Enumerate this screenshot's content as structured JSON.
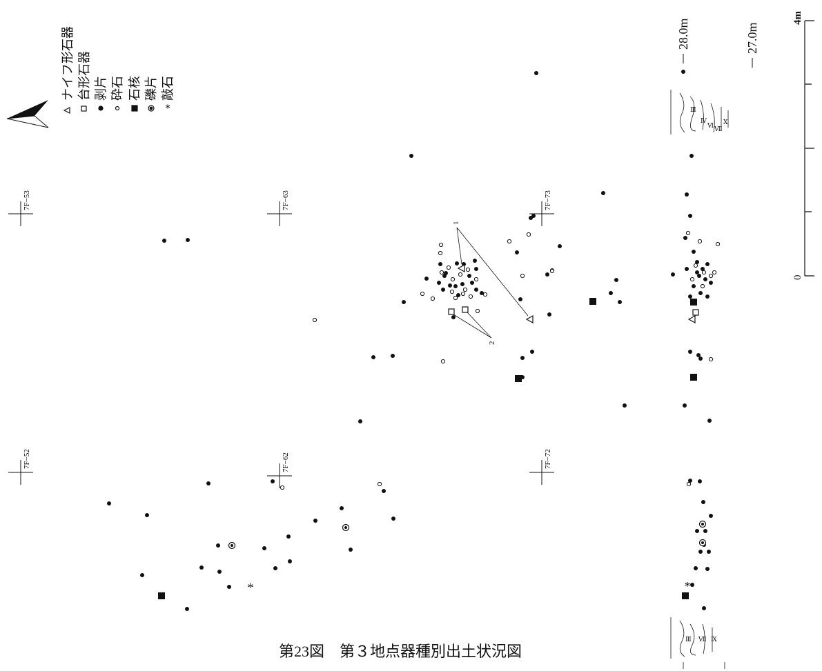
{
  "legend": {
    "items": [
      "ナイフ形石器",
      "台形石器",
      "剥片",
      "砕石",
      "石核",
      "礫片",
      "敲石"
    ]
  },
  "grid_labels": [
    "7F−53",
    "7F−63",
    "7F−73",
    "7F−52",
    "7F−62",
    "7F−72"
  ],
  "leaders": [
    "1",
    "2"
  ],
  "elevations": [
    "28.0m",
    "27.0m"
  ],
  "scale": {
    "top": "4m",
    "bottom": "0"
  },
  "section_layers": [
    "Ⅲ",
    "Ⅳ",
    "Ⅵ",
    "Ⅶ",
    "Ⅹ",
    "Ⅲ",
    "Ⅶ",
    "Ⅸ"
  ],
  "caption": "第23図　第３地点器種別出土状況図"
}
